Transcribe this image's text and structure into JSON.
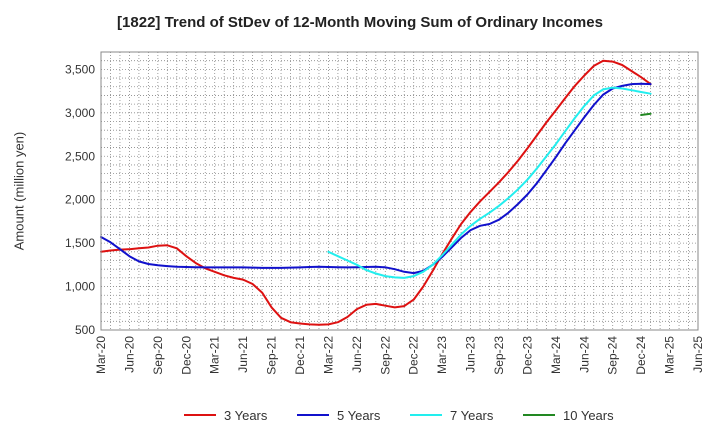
{
  "chart_data": {
    "type": "line",
    "title": "[1822]  Trend of StDev of 12-Month Moving Sum of Ordinary Incomes",
    "ylabel": "Amount (million yen)",
    "xlabel": "",
    "ylim": [
      500,
      3700
    ],
    "y_ticks": [
      500,
      1000,
      1500,
      2000,
      2500,
      3000,
      3500
    ],
    "y_tick_labels": [
      "500",
      "1,000",
      "1,500",
      "2,000",
      "2,500",
      "3,000",
      "3,500"
    ],
    "x_range_months": [
      0,
      63
    ],
    "x_ticks": [
      0,
      3,
      6,
      9,
      12,
      15,
      18,
      21,
      24,
      27,
      30,
      33,
      36,
      39,
      42,
      45,
      48,
      51,
      54,
      57,
      60,
      63
    ],
    "x_tick_labels": [
      "Mar-20",
      "Jun-20",
      "Sep-20",
      "Dec-20",
      "Mar-21",
      "Jun-21",
      "Sep-21",
      "Dec-21",
      "Mar-22",
      "Jun-22",
      "Sep-22",
      "Dec-22",
      "Mar-23",
      "Jun-23",
      "Sep-23",
      "Dec-23",
      "Mar-24",
      "Jun-24",
      "Sep-24",
      "Dec-24",
      "Mar-25",
      "Jun-25"
    ],
    "grid": true,
    "legend_position": "bottom",
    "series": [
      {
        "name": "3 Years",
        "color": "#dd1111",
        "start_month": 0,
        "values": [
          1400,
          1415,
          1425,
          1430,
          1440,
          1450,
          1470,
          1475,
          1440,
          1350,
          1270,
          1210,
          1170,
          1130,
          1100,
          1080,
          1030,
          930,
          760,
          640,
          590,
          575,
          565,
          560,
          565,
          590,
          650,
          740,
          790,
          800,
          780,
          760,
          775,
          850,
          1000,
          1180,
          1370,
          1550,
          1720,
          1860,
          1980,
          2090,
          2200,
          2320,
          2450,
          2590,
          2740,
          2890,
          3030,
          3170,
          3310,
          3430,
          3540,
          3600,
          3590,
          3550,
          3480,
          3410,
          3330
        ]
      },
      {
        "name": "5 Years",
        "color": "#1111cc",
        "start_month": 0,
        "values": [
          1570,
          1510,
          1430,
          1350,
          1290,
          1260,
          1245,
          1235,
          1228,
          1225,
          1222,
          1220,
          1220,
          1220,
          1220,
          1220,
          1218,
          1215,
          1215,
          1215,
          1218,
          1220,
          1225,
          1228,
          1225,
          1222,
          1220,
          1222,
          1225,
          1228,
          1222,
          1200,
          1170,
          1155,
          1180,
          1250,
          1340,
          1450,
          1560,
          1650,
          1700,
          1720,
          1770,
          1850,
          1950,
          2060,
          2190,
          2340,
          2490,
          2650,
          2800,
          2950,
          3090,
          3210,
          3280,
          3310,
          3330,
          3335,
          3330
        ]
      },
      {
        "name": "7 Years",
        "color": "#22eeee",
        "start_month": 24,
        "values": [
          1400,
          1350,
          1300,
          1250,
          1190,
          1150,
          1120,
          1105,
          1100,
          1120,
          1170,
          1250,
          1360,
          1480,
          1600,
          1700,
          1780,
          1850,
          1930,
          2020,
          2120,
          2230,
          2360,
          2500,
          2640,
          2790,
          2940,
          3080,
          3200,
          3270,
          3290,
          3280,
          3260,
          3240,
          3220
        ]
      },
      {
        "name": "10 Years",
        "color": "#228822",
        "start_month": 57,
        "values": [
          2975,
          2990
        ]
      }
    ]
  }
}
